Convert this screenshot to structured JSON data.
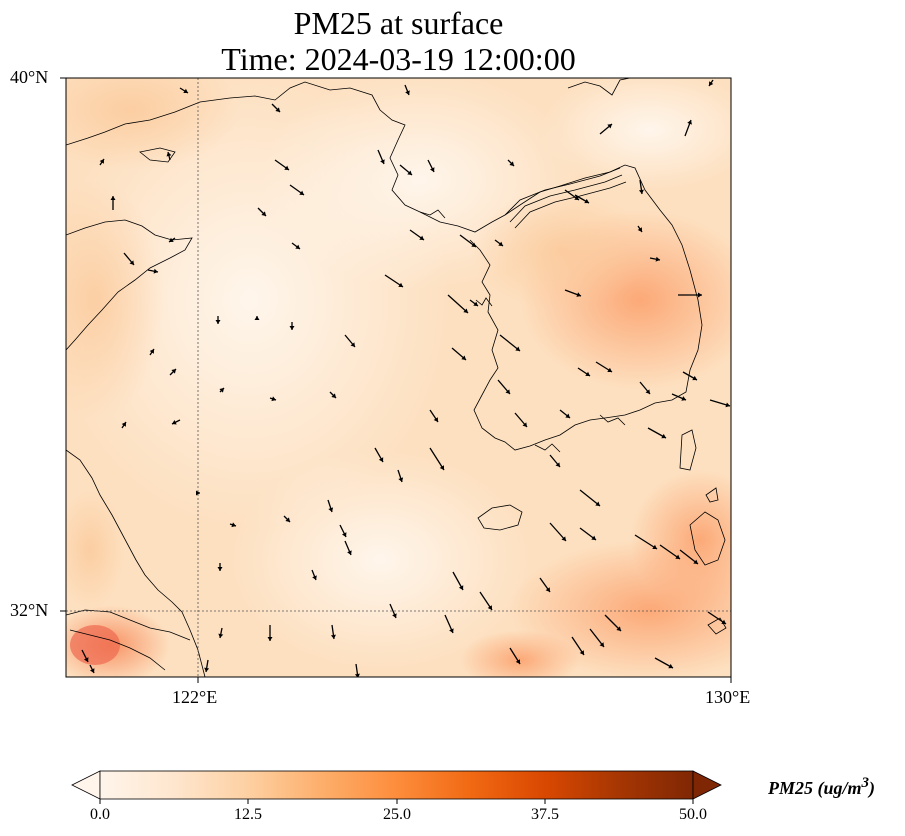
{
  "title": {
    "line1": "PM25 at surface",
    "line2": "Time: 2024-03-19 12:00:00"
  },
  "map": {
    "lat_ticks": [
      "40°N",
      "32°N"
    ],
    "lon_ticks": [
      "122°E",
      "130°E"
    ],
    "lon_range": [
      120,
      130
    ],
    "lat_range": [
      31,
      40
    ]
  },
  "colorbar": {
    "label": "PM25 (ug/m",
    "label_sup": "3",
    "label_close": ")",
    "ticks": [
      "0.0",
      "12.5",
      "25.0",
      "37.5",
      "50.0"
    ],
    "range": [
      0,
      50
    ],
    "colormap": [
      "#fff5eb",
      "#fee6ce",
      "#fdd0a2",
      "#fdae6b",
      "#fd8d3c",
      "#f16913",
      "#d94801",
      "#a63603",
      "#7f2704"
    ]
  }
}
